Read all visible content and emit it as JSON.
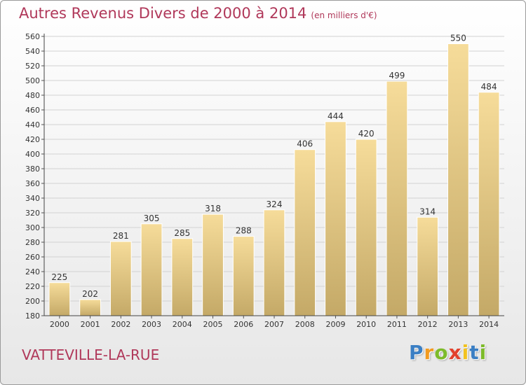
{
  "colors": {
    "title": "#b0385a",
    "bar_top": "#f6dc9a",
    "bar_bottom": "#c4a967",
    "grid": "#d2d2d2"
  },
  "chart_data": {
    "type": "bar",
    "title": "Autres Revenus Divers de 2000 à 2014",
    "subtitle": "(en milliers d'€)",
    "categories": [
      "2000",
      "2001",
      "2002",
      "2003",
      "2004",
      "2005",
      "2006",
      "2007",
      "2008",
      "2009",
      "2010",
      "2011",
      "2012",
      "2013",
      "2014"
    ],
    "values": [
      225,
      202,
      281,
      305,
      285,
      318,
      288,
      324,
      406,
      444,
      420,
      499,
      314,
      550,
      484
    ],
    "ylim": [
      180,
      560
    ],
    "ytick_step": 20,
    "grid": true,
    "data_labels": true
  },
  "footer": {
    "town": "VATTEVILLE-LA-RUE",
    "logo_letters": [
      {
        "char": "P",
        "color": "#3b7fc4"
      },
      {
        "char": "r",
        "color": "#f29a1f"
      },
      {
        "char": "o",
        "color": "#7dbb2a"
      },
      {
        "char": "x",
        "color": "#e2412d"
      },
      {
        "char": "i",
        "color": "#f2c21f"
      },
      {
        "char": "t",
        "color": "#3b7fc4"
      },
      {
        "char": "i",
        "color": "#7dbb2a"
      }
    ]
  }
}
